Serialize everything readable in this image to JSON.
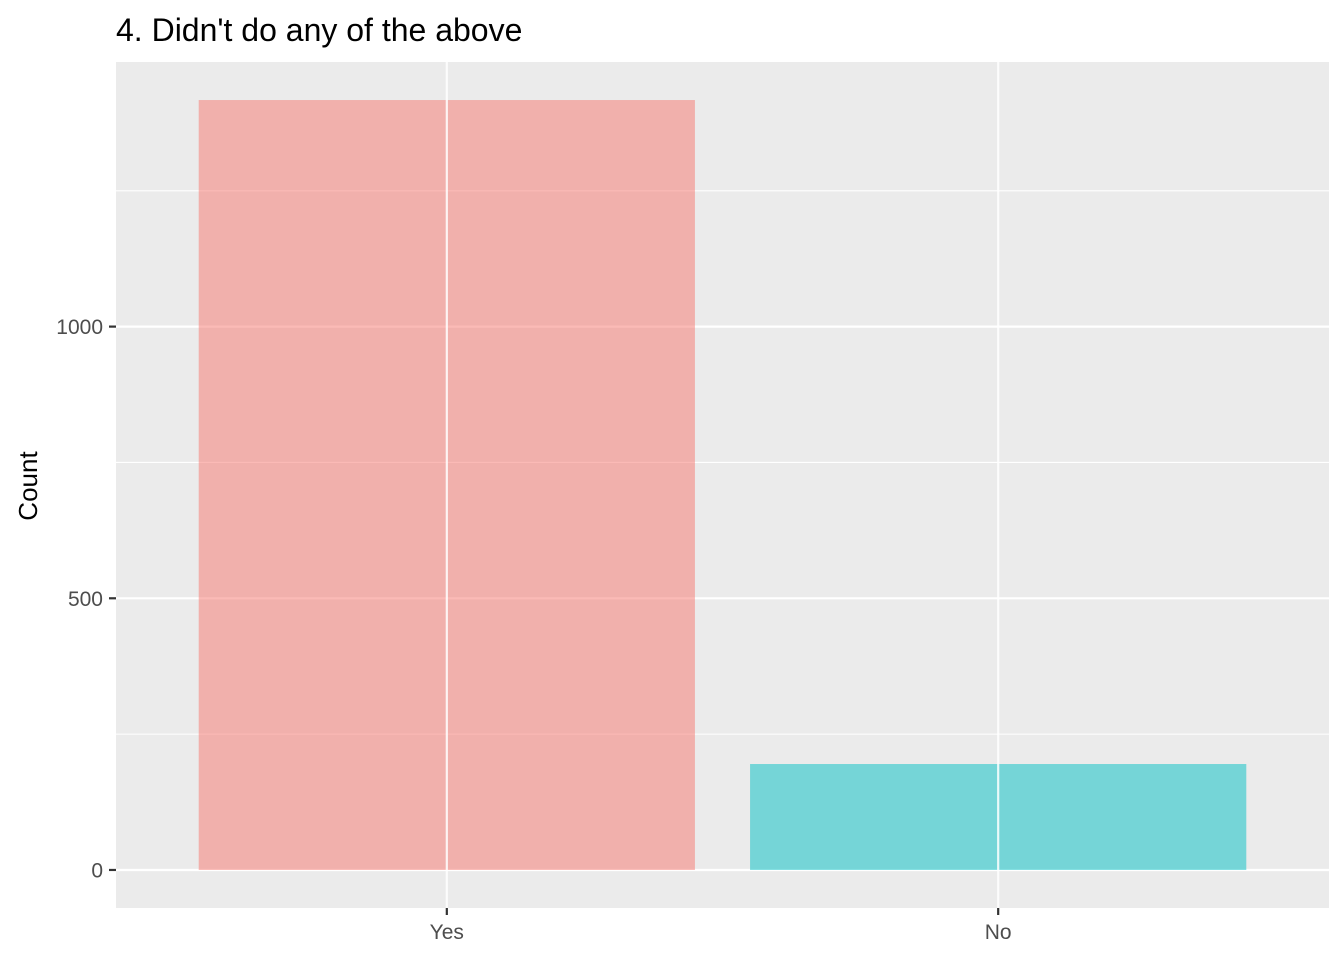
{
  "chart_data": {
    "type": "bar",
    "title": "4. Didn't do any of the above",
    "xlabel": "",
    "ylabel": "Count",
    "categories": [
      "Yes",
      "No"
    ],
    "values": [
      1417,
      195
    ],
    "colors": [
      "#F8766D",
      "#00BFC4"
    ],
    "bar_opacity": 0.5,
    "ylim": [
      -70,
      1487
    ],
    "y_ticks": [
      0,
      500,
      1000
    ],
    "y_tick_labels": [
      "0",
      "500",
      "1000"
    ],
    "y_minor_ticks": [
      250,
      750,
      1250
    ],
    "grid": true,
    "legend": "none",
    "panel_background": "#EBEBEB",
    "grid_color": "#FFFFFF"
  }
}
